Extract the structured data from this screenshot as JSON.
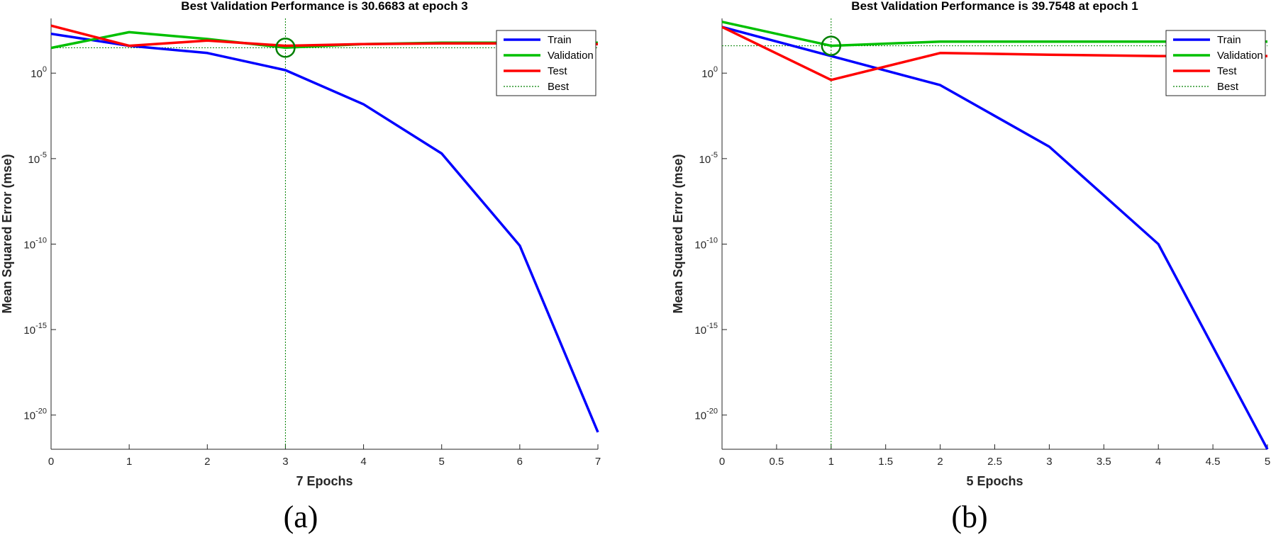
{
  "chart_data": [
    {
      "type": "line",
      "panel_label": "(a)",
      "title": "Best Validation Performance is 30.6683 at epoch 3",
      "xlabel": "7 Epochs",
      "ylabel": "Mean Squared Error  (mse)",
      "yscale": "log",
      "xlim": [
        0,
        7
      ],
      "ylim_log10": [
        -22,
        3.2
      ],
      "xticks": [
        0,
        1,
        2,
        3,
        4,
        5,
        6,
        7
      ],
      "xtick_labels": [
        "0",
        "1",
        "2",
        "3",
        "4",
        "5",
        "6",
        "7"
      ],
      "yticks_log10": [
        0,
        -5,
        -10,
        -15,
        -20
      ],
      "ytick_labels": [
        {
          "base": "10",
          "exp": "0"
        },
        {
          "base": "10",
          "exp": "-5"
        },
        {
          "base": "10",
          "exp": "-10"
        },
        {
          "base": "10",
          "exp": "-15"
        },
        {
          "base": "10",
          "exp": "-20"
        }
      ],
      "x": [
        0,
        1,
        2,
        3,
        4,
        5,
        6,
        7
      ],
      "series": [
        {
          "name": "Train",
          "color": "#0000ff",
          "values": [
            200,
            40,
            15,
            1.5,
            0.015,
            2e-05,
            8e-11,
            1e-21
          ]
        },
        {
          "name": "Validation",
          "color": "#00c000",
          "values": [
            30,
            250,
            100,
            30.6683,
            50,
            60,
            60,
            60
          ]
        },
        {
          "name": "Test",
          "color": "#ff0000",
          "values": [
            600,
            40,
            80,
            40,
            50,
            55,
            55,
            50
          ]
        }
      ],
      "best": {
        "name": "Best",
        "epoch": 3,
        "value": 30.6683,
        "color": "#008000"
      },
      "legend_position": "top-right",
      "grid": false
    },
    {
      "type": "line",
      "panel_label": "(b)",
      "title": "Best Validation Performance is 39.7548 at epoch 1",
      "xlabel": "5 Epochs",
      "ylabel": "Mean Squared Error  (mse)",
      "yscale": "log",
      "xlim": [
        0,
        5
      ],
      "ylim_log10": [
        -22,
        3.2
      ],
      "xticks": [
        0,
        0.5,
        1,
        1.5,
        2,
        2.5,
        3,
        3.5,
        4,
        4.5,
        5
      ],
      "xtick_labels": [
        "0",
        "0.5",
        "1",
        "1.5",
        "2",
        "2.5",
        "3",
        "3.5",
        "4",
        "4.5",
        "5"
      ],
      "yticks_log10": [
        0,
        -5,
        -10,
        -15,
        -20
      ],
      "ytick_labels": [
        {
          "base": "10",
          "exp": "0"
        },
        {
          "base": "10",
          "exp": "-5"
        },
        {
          "base": "10",
          "exp": "-10"
        },
        {
          "base": "10",
          "exp": "-15"
        },
        {
          "base": "10",
          "exp": "-20"
        }
      ],
      "x": [
        0,
        1,
        2,
        3,
        4,
        5
      ],
      "series": [
        {
          "name": "Train",
          "color": "#0000ff",
          "values": [
            500,
            10,
            0.2,
            5e-05,
            1e-10,
            1e-22
          ]
        },
        {
          "name": "Validation",
          "color": "#00c000",
          "values": [
            1000,
            39.7548,
            70,
            70,
            70,
            70
          ]
        },
        {
          "name": "Test",
          "color": "#ff0000",
          "values": [
            500,
            0.4,
            15,
            12,
            10,
            10
          ]
        }
      ],
      "best": {
        "name": "Best",
        "epoch": 1,
        "value": 39.7548,
        "color": "#008000"
      },
      "legend_position": "top-right",
      "grid": false
    }
  ]
}
